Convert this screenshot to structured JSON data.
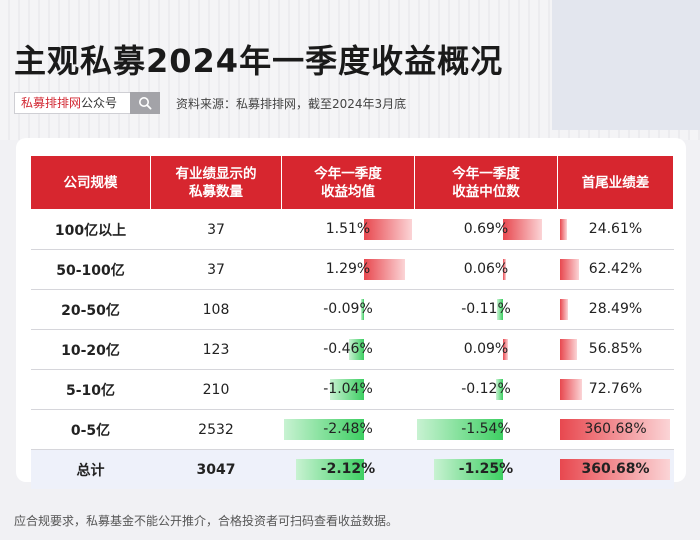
{
  "header": {
    "title": "主观私募2024年一季度收益概况",
    "search_brand": "私募排排网",
    "search_suffix": "公众号",
    "source": "资料来源：私募排排网，截至2024年3月底"
  },
  "footer": {
    "note": "应合规要求，私募基金不能公开推介，合格投资者可扫码查看收益数据。"
  },
  "colors": {
    "header_red": "#d7262f",
    "positive_bar": "#e8484f",
    "negative_bar": "#3ecf63",
    "total_row_bg": "#eef1fa"
  },
  "chart_data": {
    "type": "table",
    "columns": [
      "公司规模",
      "有业绩显示的私募数量",
      "今年一季度收益均值",
      "今年一季度收益中位数",
      "首尾业绩差"
    ],
    "column_lines": [
      [
        "公司规模"
      ],
      [
        "有业绩显示的",
        "私募数量"
      ],
      [
        "今年一季度",
        "收益均值"
      ],
      [
        "今年一季度",
        "收益中位数"
      ],
      [
        "首尾业绩差"
      ]
    ],
    "rows": [
      {
        "size": "100亿以上",
        "count": "37",
        "mean": 1.51,
        "mean_label": "1.51%",
        "median": 0.69,
        "median_label": "0.69%",
        "spread": 24.61,
        "spread_label": "24.61%"
      },
      {
        "size": "50-100亿",
        "count": "37",
        "mean": 1.29,
        "mean_label": "1.29%",
        "median": 0.06,
        "median_label": "0.06%",
        "spread": 62.42,
        "spread_label": "62.42%"
      },
      {
        "size": "20-50亿",
        "count": "108",
        "mean": -0.09,
        "mean_label": "-0.09%",
        "median": -0.11,
        "median_label": "-0.11%",
        "spread": 28.49,
        "spread_label": "28.49%"
      },
      {
        "size": "10-20亿",
        "count": "123",
        "mean": -0.46,
        "mean_label": "-0.46%",
        "median": 0.09,
        "median_label": "0.09%",
        "spread": 56.85,
        "spread_label": "56.85%"
      },
      {
        "size": "5-10亿",
        "count": "210",
        "mean": -1.04,
        "mean_label": "-1.04%",
        "median": -0.12,
        "median_label": "-0.12%",
        "spread": 72.76,
        "spread_label": "72.76%"
      },
      {
        "size": "0-5亿",
        "count": "2532",
        "mean": -2.48,
        "mean_label": "-2.48%",
        "median": -1.54,
        "median_label": "-1.54%",
        "spread": 360.68,
        "spread_label": "360.68%"
      }
    ],
    "total": {
      "size": "总计",
      "count": "3047",
      "mean": -2.12,
      "mean_label": "-2.12%",
      "median": -1.25,
      "median_label": "-1.25%",
      "spread": 360.68,
      "spread_label": "360.68%"
    }
  }
}
